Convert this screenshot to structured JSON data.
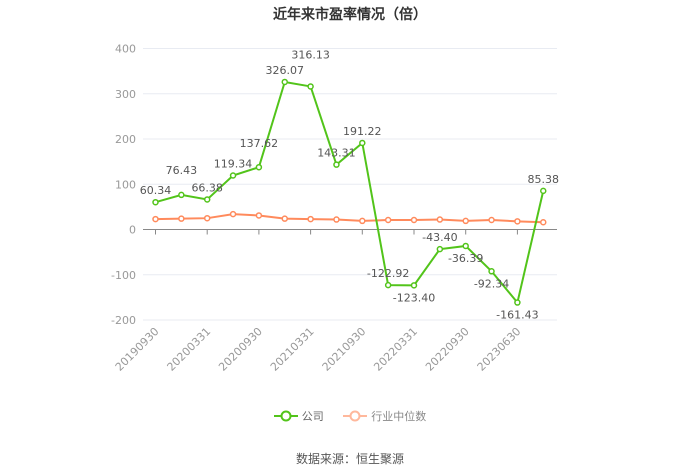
{
  "chart_data": {
    "type": "line",
    "title": "近年来市盈率情况（倍）",
    "xlabel": "",
    "ylabel": "",
    "ylim": [
      -200,
      400
    ],
    "yticks": [
      400,
      300,
      200,
      100,
      0,
      -100,
      -200
    ],
    "grid": true,
    "legend_position": "bottom",
    "categories": [
      "20190930",
      "",
      "20200331",
      "",
      "20200930",
      "",
      "20210331",
      "",
      "20210930",
      "",
      "20220331",
      "",
      "20220930",
      "",
      "20230630",
      ""
    ],
    "series": [
      {
        "name": "公司",
        "color": "#52c41a",
        "values": [
          60.34,
          76.43,
          66.38,
          119.34,
          137.62,
          326.07,
          316.13,
          143.31,
          191.22,
          -122.92,
          -123.4,
          -43.4,
          -36.39,
          -92.34,
          -161.43,
          85.38
        ],
        "labels": [
          "60.34",
          "76.43",
          "66.38",
          "119.34",
          "137.62",
          "326.07",
          "316.13",
          "143.31",
          "191.22",
          "-122.92",
          "-123.40",
          "-43.40",
          "-36.39",
          "-92.34",
          "-161.43",
          "85.38"
        ]
      },
      {
        "name": "行业中位数",
        "color": "#ff8a5c",
        "values": [
          23,
          24,
          25,
          34,
          31,
          24,
          23,
          22,
          19,
          21,
          21,
          22,
          19,
          21,
          18,
          16
        ]
      }
    ]
  },
  "source": "数据来源：恒生聚源"
}
